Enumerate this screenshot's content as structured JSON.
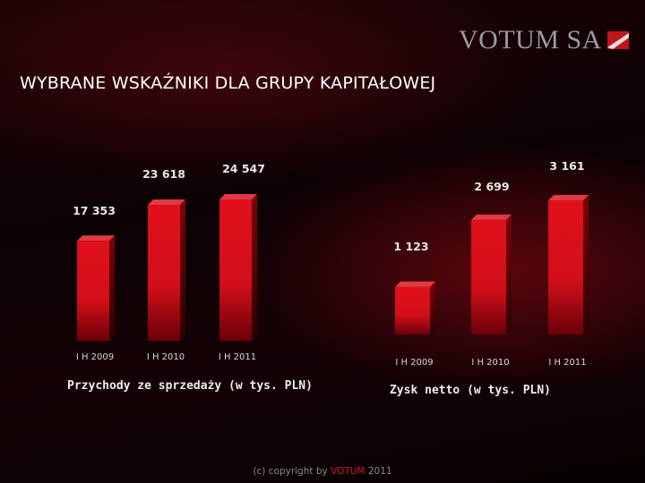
{
  "logo": {
    "text": "VOTUM SA"
  },
  "page": {
    "title": "WYBRANE WSKAŹNIKI DLA GRUPY KAPITAŁOWEJ"
  },
  "footer": {
    "prefix": "(c) copyright by",
    "brand": "VOTUM",
    "year": "2011"
  },
  "colors": {
    "bar": "#d4101c",
    "bar_dark": "#7a0008",
    "accent": "#d11a26"
  },
  "chart_data": [
    {
      "type": "bar",
      "title": "Przychody ze sprzedaży (w tys. PLN)",
      "categories": [
        "I H 2009",
        "I H 2010",
        "I H 2011"
      ],
      "values": [
        17353,
        23618,
        24547
      ],
      "value_labels": [
        "17 353",
        "23 618",
        "24 547"
      ],
      "xlabel": "",
      "ylabel": "",
      "grid": false
    },
    {
      "type": "bar",
      "title": "Zysk netto (w tys. PLN)",
      "categories": [
        "I H 2009",
        "I H 2010",
        "I H 2011"
      ],
      "values": [
        1123,
        2699,
        3161
      ],
      "value_labels": [
        "1 123",
        "2 699",
        "3 161"
      ],
      "xlabel": "",
      "ylabel": "",
      "grid": false
    }
  ]
}
